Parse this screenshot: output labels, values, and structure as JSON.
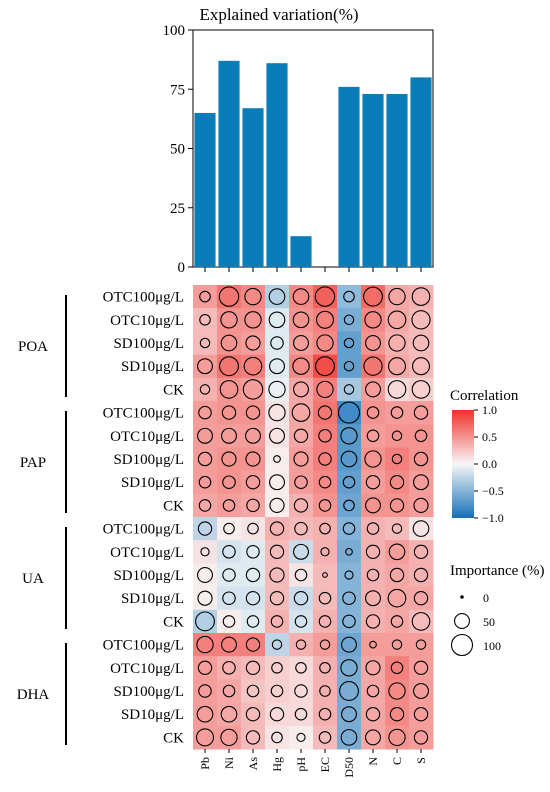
{
  "chart_data": [
    {
      "type": "bar",
      "title": "Explained variation(%)",
      "categories": [
        "Pb",
        "Ni",
        "As",
        "Hg",
        "pH",
        "EC",
        "D50",
        "N",
        "C",
        "S"
      ],
      "values": [
        65,
        87,
        67,
        86,
        13,
        0,
        76,
        73,
        73,
        80
      ],
      "ylim": [
        0,
        100
      ],
      "yticks": [
        0,
        25,
        50,
        75,
        100
      ],
      "bar_color": "#0a7cb8",
      "grid": false
    },
    {
      "type": "heatmap",
      "columns": [
        "Pb",
        "Ni",
        "As",
        "Hg",
        "pH",
        "EC",
        "D50",
        "N",
        "C",
        "S"
      ],
      "groups": [
        {
          "name": "POA",
          "rows": [
            {
              "label": "OTC100μg/L",
              "corr": [
                0.45,
                0.65,
                0.55,
                -0.3,
                0.55,
                0.75,
                -0.45,
                0.7,
                0.4,
                0.35
              ],
              "importance": [
                25,
                85,
                60,
                55,
                55,
                85,
                25,
                80,
                60,
                70
              ]
            },
            {
              "label": "OTC10μg/L",
              "corr": [
                0.3,
                0.5,
                0.5,
                -0.1,
                0.5,
                0.6,
                -0.55,
                0.55,
                0.4,
                0.3
              ],
              "importance": [
                25,
                60,
                60,
                55,
                55,
                65,
                20,
                60,
                70,
                75
              ]
            },
            {
              "label": "SD100μg/L",
              "corr": [
                0.3,
                0.5,
                0.45,
                -0.1,
                0.45,
                0.55,
                -0.65,
                0.5,
                0.35,
                0.3
              ],
              "importance": [
                20,
                55,
                45,
                35,
                50,
                60,
                20,
                50,
                60,
                55
              ]
            },
            {
              "label": "SD10μg/L",
              "corr": [
                0.45,
                0.65,
                0.6,
                -0.1,
                0.55,
                0.85,
                -0.65,
                0.65,
                0.4,
                0.3
              ],
              "importance": [
                50,
                80,
                70,
                50,
                60,
                80,
                20,
                75,
                65,
                65
              ]
            },
            {
              "label": "CK",
              "corr": [
                0.35,
                0.5,
                0.45,
                -0.05,
                0.4,
                0.6,
                -0.35,
                0.45,
                0.15,
                0.2
              ],
              "importance": [
                20,
                70,
                85,
                60,
                50,
                60,
                20,
                50,
                70,
                70
              ]
            }
          ]
        },
        {
          "name": "PAP",
          "rows": [
            {
              "label": "OTC100μg/L",
              "corr": [
                0.45,
                0.5,
                0.5,
                0.1,
                0.4,
                0.65,
                -0.8,
                0.5,
                0.45,
                0.45
              ],
              "importance": [
                35,
                40,
                40,
                60,
                70,
                40,
                100,
                30,
                30,
                40
              ]
            },
            {
              "label": "OTC10μg/L",
              "corr": [
                0.45,
                0.45,
                0.45,
                0.1,
                0.4,
                0.6,
                -0.7,
                0.45,
                0.5,
                0.5
              ],
              "importance": [
                50,
                50,
                50,
                50,
                40,
                35,
                60,
                30,
                20,
                30
              ]
            },
            {
              "label": "SD100μg/L",
              "corr": [
                0.45,
                0.5,
                0.5,
                0.05,
                0.45,
                0.6,
                -0.7,
                0.5,
                0.6,
                0.5
              ],
              "importance": [
                40,
                45,
                45,
                10,
                45,
                35,
                55,
                60,
                20,
                40
              ]
            },
            {
              "label": "SD10μg/L",
              "corr": [
                0.45,
                0.5,
                0.45,
                0.05,
                0.45,
                0.55,
                -0.65,
                0.45,
                0.55,
                0.45
              ],
              "importance": [
                30,
                35,
                40,
                50,
                35,
                30,
                30,
                40,
                40,
                50
              ]
            },
            {
              "label": "CK",
              "corr": [
                0.4,
                0.45,
                0.4,
                0.05,
                0.35,
                0.5,
                -0.6,
                0.5,
                0.5,
                0.45
              ],
              "importance": [
                30,
                30,
                35,
                45,
                40,
                30,
                25,
                50,
                40,
                45
              ]
            }
          ]
        },
        {
          "name": "UA",
          "rows": [
            {
              "label": "OTC100μg/L",
              "corr": [
                -0.25,
                0.05,
                0.1,
                0.35,
                0.3,
                0.35,
                -0.5,
                0.35,
                0.3,
                0.1
              ],
              "importance": [
                40,
                25,
                25,
                40,
                35,
                25,
                30,
                30,
                20,
                55
              ]
            },
            {
              "label": "OTC10μg/L",
              "corr": [
                0.1,
                -0.15,
                -0.1,
                0.3,
                -0.2,
                0.35,
                -0.55,
                0.35,
                0.45,
                0.35
              ],
              "importance": [
                15,
                35,
                35,
                40,
                50,
                15,
                10,
                40,
                55,
                40
              ]
            },
            {
              "label": "SD100μg/L",
              "corr": [
                0.05,
                -0.1,
                -0.1,
                0.3,
                0.1,
                0.3,
                -0.5,
                0.35,
                0.4,
                0.35
              ],
              "importance": [
                50,
                35,
                40,
                45,
                30,
                5,
                15,
                30,
                40,
                40
              ]
            },
            {
              "label": "SD10μg/L",
              "corr": [
                0.05,
                -0.15,
                -0.15,
                0.3,
                -0.2,
                0.3,
                -0.5,
                0.35,
                0.4,
                0.4
              ],
              "importance": [
                45,
                35,
                40,
                40,
                40,
                30,
                35,
                50,
                70,
                40
              ]
            },
            {
              "label": "CK",
              "corr": [
                -0.3,
                0.05,
                -0.1,
                0.35,
                -0.15,
                0.35,
                -0.5,
                0.35,
                0.4,
                0.3
              ],
              "importance": [
                80,
                30,
                30,
                30,
                30,
                30,
                35,
                40,
                30,
                70
              ]
            }
          ]
        },
        {
          "name": "DHA",
          "rows": [
            {
              "label": "OTC100μg/L",
              "corr": [
                0.6,
                0.6,
                0.6,
                -0.25,
                0.35,
                0.45,
                -0.6,
                0.45,
                0.45,
                0.45
              ],
              "importance": [
                60,
                50,
                40,
                20,
                20,
                20,
                50,
                10,
                20,
                20
              ]
            },
            {
              "label": "OTC10μg/L",
              "corr": [
                0.45,
                0.35,
                0.3,
                0.2,
                0.15,
                0.35,
                -0.55,
                0.4,
                0.6,
                0.45
              ],
              "importance": [
                40,
                35,
                40,
                25,
                25,
                25,
                60,
                45,
                30,
                40
              ]
            },
            {
              "label": "SD100μg/L",
              "corr": [
                0.45,
                0.4,
                0.25,
                0.2,
                0.15,
                0.35,
                -0.55,
                0.4,
                0.55,
                0.45
              ],
              "importance": [
                35,
                30,
                30,
                30,
                35,
                25,
                80,
                30,
                60,
                50
              ]
            },
            {
              "label": "SD10μg/L",
              "corr": [
                0.45,
                0.4,
                0.3,
                0.15,
                0.15,
                0.35,
                -0.55,
                0.4,
                0.55,
                0.45
              ],
              "importance": [
                55,
                55,
                40,
                40,
                30,
                30,
                50,
                40,
                40,
                40
              ]
            },
            {
              "label": "CK",
              "corr": [
                0.45,
                0.45,
                0.3,
                0.1,
                0.05,
                0.3,
                -0.55,
                0.4,
                0.5,
                0.45
              ],
              "importance": [
                65,
                60,
                40,
                25,
                15,
                30,
                55,
                50,
                60,
                40
              ]
            }
          ]
        }
      ],
      "color_legend": {
        "title": "Correlation",
        "range": [
          -1.0,
          1.0
        ],
        "ticks": [
          "1.0",
          "0.5",
          "0.0",
          "−0.5",
          "−1.0"
        ],
        "colors": {
          "positive": "#f0302a",
          "neutral": "#f7f7f7",
          "negative": "#1570b8"
        }
      },
      "size_legend": {
        "title": "Importance (%)",
        "entries": [
          {
            "label": "0",
            "value": 0
          },
          {
            "label": "50",
            "value": 50
          },
          {
            "label": "100",
            "value": 100
          }
        ]
      }
    }
  ]
}
